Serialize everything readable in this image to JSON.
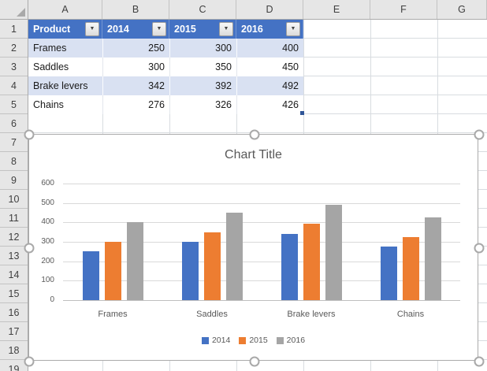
{
  "sheet": {
    "column_headers": [
      "A",
      "B",
      "C",
      "D",
      "E",
      "F",
      "G"
    ],
    "row_headers": [
      "1",
      "2",
      "3",
      "4",
      "5",
      "6",
      "7",
      "8",
      "9",
      "10",
      "11",
      "12",
      "13",
      "14",
      "15",
      "16",
      "17",
      "18",
      "19"
    ]
  },
  "table": {
    "columns": [
      "Product",
      "2014",
      "2015",
      "2016"
    ],
    "rows": [
      {
        "product": "Frames",
        "values": [
          250,
          300,
          400
        ]
      },
      {
        "product": "Saddles",
        "values": [
          300,
          350,
          450
        ]
      },
      {
        "product": "Brake levers",
        "values": [
          342,
          392,
          492
        ]
      },
      {
        "product": "Chains",
        "values": [
          276,
          326,
          426
        ]
      }
    ],
    "header_fill": "#4472C4",
    "band_fill": "#D9E1F2"
  },
  "icons": {
    "filter_arrow": "▼"
  },
  "chart_data": {
    "type": "bar",
    "title": "Chart Title",
    "categories": [
      "Frames",
      "Saddles",
      "Brake levers",
      "Chains"
    ],
    "series": [
      {
        "name": "2014",
        "color": "#4472C4",
        "values": [
          250,
          300,
          342,
          276
        ]
      },
      {
        "name": "2015",
        "color": "#ED7D31",
        "values": [
          300,
          350,
          392,
          326
        ]
      },
      {
        "name": "2016",
        "color": "#A5A5A5",
        "values": [
          400,
          450,
          492,
          426
        ]
      }
    ],
    "ylim": [
      0,
      600
    ],
    "ytick_step": 100,
    "yticks": [
      "0",
      "100",
      "200",
      "300",
      "400",
      "500",
      "600"
    ],
    "grid": true,
    "legend_position": "bottom",
    "selected": true
  }
}
